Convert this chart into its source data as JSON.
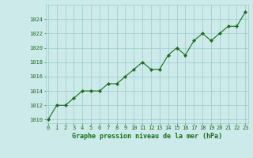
{
  "x": [
    0,
    1,
    2,
    3,
    4,
    5,
    6,
    7,
    8,
    9,
    10,
    11,
    12,
    13,
    14,
    15,
    16,
    17,
    18,
    19,
    20,
    21,
    22,
    23
  ],
  "y": [
    1010,
    1012,
    1012,
    1013,
    1014,
    1014,
    1014,
    1015,
    1015,
    1016,
    1017,
    1018,
    1017,
    1017,
    1019,
    1020,
    1019,
    1021,
    1022,
    1021,
    1022,
    1023,
    1023,
    1025
  ],
  "line_color": "#1a6e1a",
  "marker_color": "#1a6e1a",
  "bg_color": "#cceaea",
  "grid_color": "#9ec8c8",
  "title": "Graphe pression niveau de la mer (hPa)",
  "title_color": "#1a6e1a",
  "ylim": [
    1009.5,
    1026.0
  ],
  "yticks": [
    1010,
    1012,
    1014,
    1016,
    1018,
    1020,
    1022,
    1024
  ],
  "xlim": [
    -0.3,
    23.3
  ],
  "xticks": [
    0,
    1,
    2,
    3,
    4,
    5,
    6,
    7,
    8,
    9,
    10,
    11,
    12,
    13,
    14,
    15,
    16,
    17,
    18,
    19,
    20,
    21,
    22,
    23
  ],
  "xlabel_fontsize": 5.0,
  "ylabel_fontsize": 5.0,
  "title_fontsize": 6.0
}
